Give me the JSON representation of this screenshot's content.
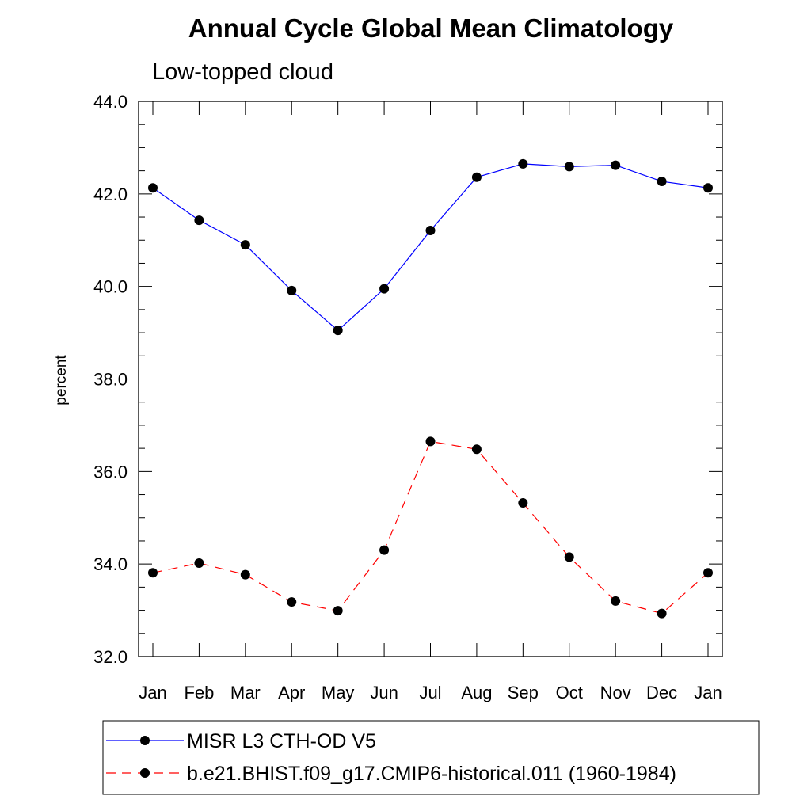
{
  "chart_data": {
    "type": "line",
    "title": "Annual Cycle Global Mean Climatology",
    "subtitle": "Low-topped cloud",
    "ylabel": "percent",
    "categories": [
      "Jan",
      "Feb",
      "Mar",
      "Apr",
      "May",
      "Jun",
      "Jul",
      "Aug",
      "Sep",
      "Oct",
      "Nov",
      "Dec",
      "Jan"
    ],
    "ylim": [
      32.0,
      44.0
    ],
    "yticks": [
      "32.0",
      "34.0",
      "36.0",
      "38.0",
      "40.0",
      "42.0",
      "44.0"
    ],
    "series": [
      {
        "name": "MISR L3 CTH-OD V5",
        "color": "#0000ff",
        "dash": "solid",
        "values": [
          42.13,
          41.43,
          40.9,
          39.91,
          39.05,
          39.95,
          41.21,
          42.36,
          42.65,
          42.59,
          42.62,
          42.27,
          42.13
        ]
      },
      {
        "name": "b.e21.BHIST.f09_g17.CMIP6-historical.011 (1960-1984)",
        "color": "#ff0000",
        "dash": "dashed",
        "values": [
          33.81,
          34.02,
          33.77,
          33.18,
          32.99,
          34.3,
          36.65,
          36.48,
          35.32,
          34.15,
          33.2,
          32.93,
          33.81
        ]
      }
    ],
    "legend_placement": "bottom"
  }
}
